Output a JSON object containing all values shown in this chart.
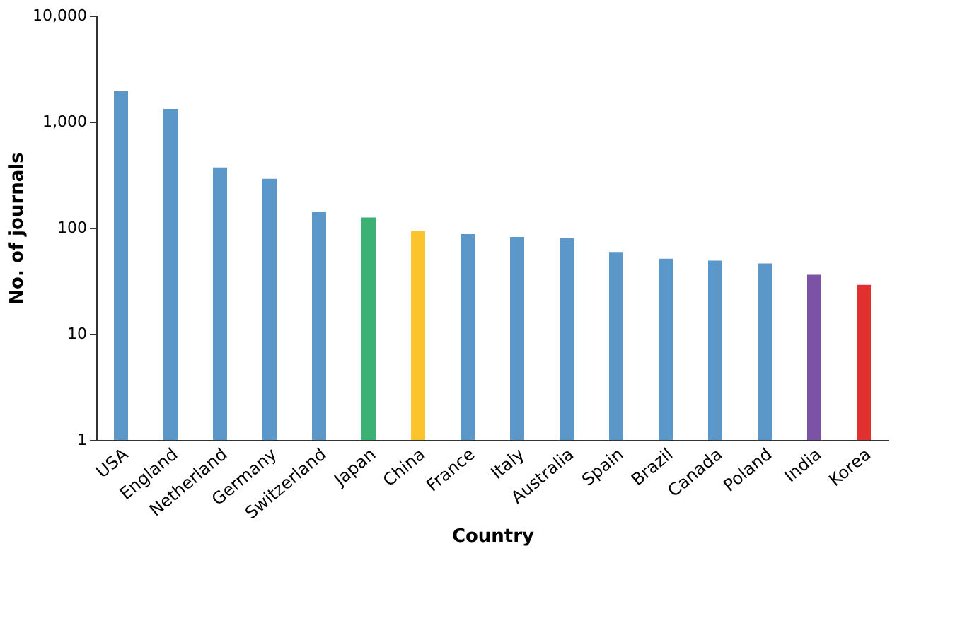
{
  "chart_data": {
    "type": "bar",
    "xlabel": "Country",
    "ylabel": "No. of journals",
    "categories": [
      "USA",
      "England",
      "Netherland",
      "Germany",
      "Switzerland",
      "Japan",
      "China",
      "France",
      "Italy",
      "Australia",
      "Spain",
      "Brazil",
      "Canada",
      "Poland",
      "India",
      "Korea"
    ],
    "values": [
      1950,
      1320,
      370,
      290,
      140,
      125,
      93,
      87,
      82,
      80,
      59,
      51,
      49,
      46,
      36,
      29
    ],
    "colors": [
      "#5b97c9",
      "#5b97c9",
      "#5b97c9",
      "#5b97c9",
      "#5b97c9",
      "#3bb273",
      "#fcc42c",
      "#5b97c9",
      "#5b97c9",
      "#5b97c9",
      "#5b97c9",
      "#5b97c9",
      "#5b97c9",
      "#5b97c9",
      "#7b52a6",
      "#e03030"
    ],
    "log": true,
    "ylim": [
      1,
      10000
    ],
    "yticks": [
      1,
      10,
      100,
      {
        "value": 1000,
        "label": "1,000"
      },
      {
        "value": 10000,
        "label": "10,000"
      }
    ],
    "grid": false
  }
}
